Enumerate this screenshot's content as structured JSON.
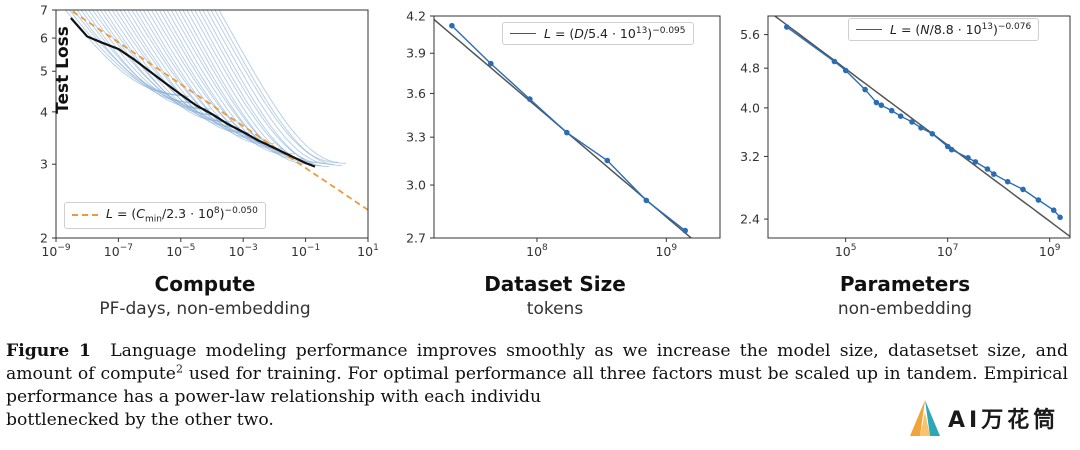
{
  "chart_data": [
    {
      "type": "line",
      "id": "compute",
      "title": "Compute",
      "subtitle": "PF-days, non-embedding",
      "ylabel": "Test Loss",
      "x_scale": "log",
      "y_scale": "log",
      "xlim": [
        1e-09,
        10
      ],
      "ylim": [
        2,
        7
      ],
      "x_ticks": [
        {
          "v": 1e-09,
          "b": "10",
          "e": "−9"
        },
        {
          "v": 1e-07,
          "b": "10",
          "e": "−7"
        },
        {
          "v": 1e-05,
          "b": "10",
          "e": "−5"
        },
        {
          "v": 0.001,
          "b": "10",
          "e": "−3"
        },
        {
          "v": 0.1,
          "b": "10",
          "e": "−1"
        },
        {
          "v": 10,
          "b": "10",
          "e": "1"
        }
      ],
      "y_ticks": [
        {
          "v": 2,
          "label": "2"
        },
        {
          "v": 3,
          "label": "3"
        },
        {
          "v": 4,
          "label": "4"
        },
        {
          "v": 5,
          "label": "5"
        },
        {
          "v": 6,
          "label": "6"
        },
        {
          "v": 7,
          "label": "7"
        }
      ],
      "legend": {
        "label": "L = (C_min/2.3 · 10^8)^−0.050",
        "position": "lower-left"
      },
      "fit": {
        "coef": 230000000.0,
        "exponent": -0.05,
        "color": "#ee9a3a",
        "style": "dashed"
      },
      "frontier": {
        "color": "#111111",
        "x": [
          3e-09,
          1e-08,
          3e-08,
          1e-07,
          3e-07,
          1e-06,
          3e-06,
          1e-05,
          3e-05,
          0.0001,
          0.0003,
          0.001,
          0.003,
          0.01,
          0.03,
          0.1,
          0.2
        ],
        "y": [
          6.7,
          6.05,
          5.85,
          5.65,
          5.35,
          5.0,
          4.7,
          4.4,
          4.15,
          3.95,
          3.75,
          3.58,
          3.42,
          3.28,
          3.15,
          3.02,
          2.96
        ]
      },
      "curves": {
        "color": "#7fa9d4",
        "count": 40,
        "start_x_range": [
          1e-09,
          0.0001
        ],
        "end_x_range": [
          1e-05,
          2
        ],
        "start_y": 7.5
      }
    },
    {
      "type": "line",
      "id": "dataset",
      "title": "Dataset Size",
      "subtitle": "tokens",
      "x_scale": "log",
      "y_scale": "log",
      "xlim": [
        16000000.0,
        2600000000.0
      ],
      "ylim": [
        2.7,
        4.2
      ],
      "x_ticks": [
        {
          "v": 100000000.0,
          "b": "10",
          "e": "8"
        },
        {
          "v": 1000000000.0,
          "b": "10",
          "e": "9"
        }
      ],
      "y_ticks": [
        {
          "v": 2.7,
          "label": "2.7"
        },
        {
          "v": 3.0,
          "label": "3.0"
        },
        {
          "v": 3.3,
          "label": "3.3"
        },
        {
          "v": 3.6,
          "label": "3.6"
        },
        {
          "v": 3.9,
          "label": "3.9"
        },
        {
          "v": 4.2,
          "label": "4.2"
        }
      ],
      "legend": {
        "label": "L = (D/5.4 · 10^13)^−0.095",
        "position": "top-right"
      },
      "fit": {
        "coef": 54000000000000.0,
        "exponent": -0.095,
        "color": "#555555",
        "style": "solid"
      },
      "points": {
        "color": "#2b6db3",
        "x": [
          22000000.0,
          44000000.0,
          88000000.0,
          170000000.0,
          350000000.0,
          700000000.0,
          1400000000.0
        ],
        "y": [
          4.12,
          3.82,
          3.56,
          3.33,
          3.15,
          2.91,
          2.74
        ]
      }
    },
    {
      "type": "line",
      "id": "parameters",
      "title": "Parameters",
      "subtitle": "non-embedding",
      "x_scale": "log",
      "y_scale": "log",
      "xlim": [
        3000.0,
        2500000000.0
      ],
      "ylim": [
        2.2,
        6.1
      ],
      "x_ticks": [
        {
          "v": 100000.0,
          "b": "10",
          "e": "5"
        },
        {
          "v": 10000000.0,
          "b": "10",
          "e": "7"
        },
        {
          "v": 1000000000.0,
          "b": "10",
          "e": "9"
        }
      ],
      "y_ticks": [
        {
          "v": 2.4,
          "label": "2.4"
        },
        {
          "v": 3.2,
          "label": "3.2"
        },
        {
          "v": 4.0,
          "label": "4.0"
        },
        {
          "v": 4.8,
          "label": "4.8"
        },
        {
          "v": 5.6,
          "label": "5.6"
        }
      ],
      "legend": {
        "label": "L = (N/8.8 · 10^13)^−0.076",
        "position": "top-right"
      },
      "fit": {
        "coef": 88000000000000.0,
        "exponent": -0.076,
        "color": "#555555",
        "style": "solid"
      },
      "points": {
        "color": "#2b6db3",
        "x": [
          7000.0,
          60000.0,
          100000.0,
          240000.0,
          400000.0,
          500000.0,
          800000.0,
          1200000.0,
          2000000.0,
          3000000.0,
          5000000.0,
          10000000.0,
          12000000.0,
          25000000.0,
          35000000.0,
          60000000.0,
          80000000.0,
          150000000.0,
          300000000.0,
          600000000.0,
          1200000000.0,
          1600000000.0
        ],
        "y": [
          5.8,
          4.95,
          4.75,
          4.35,
          4.1,
          4.05,
          3.95,
          3.85,
          3.75,
          3.65,
          3.55,
          3.35,
          3.3,
          3.18,
          3.12,
          3.02,
          2.95,
          2.85,
          2.75,
          2.62,
          2.5,
          2.42
        ]
      }
    }
  ],
  "caption": {
    "label": "Figure 1",
    "text_1": "Language modeling performance improves smoothly as we increase the model size, datasetset size, and amount of compute",
    "sup": "2",
    "text_2": " used for training. For optimal performance all three factors must be scaled up in tandem. Empirical performance has a power-law relationship with each individu",
    "text_3": "bottlenecked by the other two."
  },
  "watermark": {
    "text": "AI万花筒",
    "icon": "ai-flower-logo-icon",
    "colors": [
      "#f2a33a",
      "#2aa8b8"
    ]
  }
}
